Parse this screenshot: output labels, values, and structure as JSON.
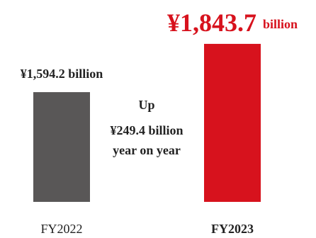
{
  "chart_data": {
    "type": "bar",
    "categories": [
      "FY2022",
      "FY2023"
    ],
    "values": [
      1594.2,
      1843.7
    ],
    "value_labels": [
      "¥1,594.2 billion",
      "¥1,843.7 billion"
    ],
    "colors": [
      "#595757",
      "#d7121d"
    ],
    "ylim": [
      1027,
      1924
    ],
    "annotation": [
      "Up",
      "¥249.4 billion",
      "year on year"
    ]
  }
}
